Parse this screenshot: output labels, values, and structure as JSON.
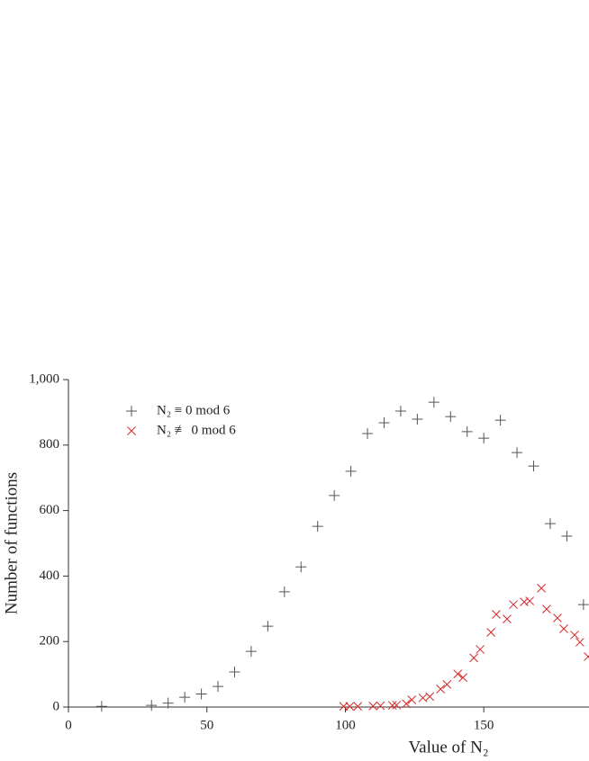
{
  "chart_data": {
    "type": "scatter",
    "xlabel": "Value of N₂",
    "ylabel": "Number of functions",
    "xlim": [
      0,
      188
    ],
    "ylim": [
      0,
      1000
    ],
    "xticks": [
      0,
      50,
      100,
      150
    ],
    "yticks": [
      0,
      200,
      400,
      600,
      800,
      {
        "value": 1000,
        "label": "1,000"
      }
    ],
    "legend": "upper left",
    "series": [
      {
        "name": "N₂ ≡ 0 mod 6",
        "color": "#555555",
        "marker": "plus",
        "x": [
          12,
          30,
          36,
          42,
          48,
          54,
          60,
          66,
          72,
          78,
          84,
          90,
          96,
          102,
          108,
          114,
          120,
          126,
          132,
          138,
          144,
          150,
          156,
          162,
          168,
          174,
          180,
          186
        ],
        "values": [
          2,
          5,
          12,
          30,
          40,
          63,
          107,
          170,
          247,
          352,
          428,
          552,
          646,
          720,
          835,
          868,
          904,
          879,
          931,
          887,
          841,
          821,
          876,
          777,
          736,
          560,
          522,
          313
        ]
      },
      {
        "name": "N₂ ≢ 0 mod 6",
        "color": "#d62728",
        "marker": "cross",
        "x": [
          99.4,
          101.6,
          104.5,
          110,
          112.7,
          117,
          118.5,
          122,
          124,
          128,
          130.5,
          134.4,
          136.7,
          140.6,
          142.5,
          146.4,
          148.7,
          152.6,
          154.5,
          158.4,
          160.7,
          164.6,
          166.6,
          170.8,
          172.7,
          176.6,
          178.9,
          182.8,
          184.7,
          187.7
        ],
        "values": [
          2,
          2,
          2,
          3,
          4,
          5,
          6,
          10,
          22,
          28,
          32,
          55,
          69,
          101,
          90,
          150,
          176,
          228,
          283,
          269,
          313,
          321,
          324,
          363,
          299,
          272,
          239,
          220,
          198,
          154
        ]
      }
    ]
  }
}
